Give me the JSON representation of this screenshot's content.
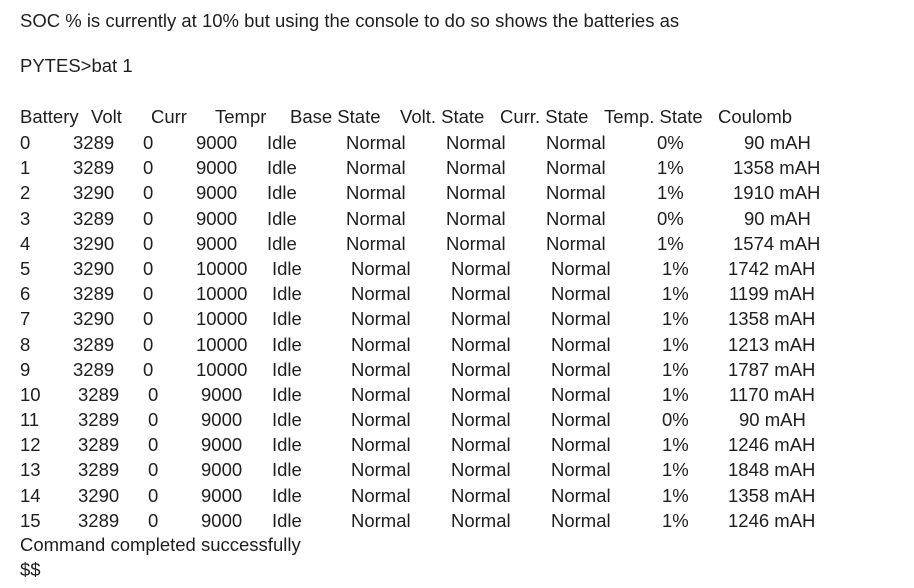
{
  "intro": "SOC % is currently at 10% but using the console to do so shows the batteries as",
  "prompt": "PYTES>bat 1",
  "columns": [
    "Battery",
    "Volt",
    "Curr",
    "Tempr",
    "Base State",
    "Volt. State",
    "Curr. State",
    "Temp. State",
    "Coulomb"
  ],
  "rows": [
    [
      "0",
      "3289",
      "0",
      "9000",
      "Idle",
      "Normal",
      "Normal",
      "Normal",
      "0%",
      "90 mAH"
    ],
    [
      "1",
      "3289",
      "0",
      "9000",
      "Idle",
      "Normal",
      "Normal",
      "Normal",
      "1%",
      "1358 mAH"
    ],
    [
      "2",
      "3290",
      "0",
      "9000",
      "Idle",
      "Normal",
      "Normal",
      "Normal",
      "1%",
      "1910 mAH"
    ],
    [
      "3",
      "3289",
      "0",
      "9000",
      "Idle",
      "Normal",
      "Normal",
      "Normal",
      "0%",
      "90 mAH"
    ],
    [
      "4",
      "3290",
      "0",
      "9000",
      "Idle",
      "Normal",
      "Normal",
      "Normal",
      "1%",
      "1574 mAH"
    ],
    [
      "5",
      "3290",
      "0",
      "10000",
      "Idle",
      "Normal",
      "Normal",
      "Normal",
      "1%",
      "1742 mAH"
    ],
    [
      "6",
      "3289",
      "0",
      "10000",
      "Idle",
      "Normal",
      "Normal",
      "Normal",
      "1%",
      "1199 mAH"
    ],
    [
      "7",
      "3290",
      "0",
      "10000",
      "Idle",
      "Normal",
      "Normal",
      "Normal",
      "1%",
      "1358 mAH"
    ],
    [
      "8",
      "3289",
      "0",
      "10000",
      "Idle",
      "Normal",
      "Normal",
      "Normal",
      "1%",
      "1213 mAH"
    ],
    [
      "9",
      "3289",
      "0",
      "10000",
      "Idle",
      "Normal",
      "Normal",
      "Normal",
      "1%",
      "1787 mAH"
    ],
    [
      "10",
      "3289",
      "0",
      "9000",
      "Idle",
      "Normal",
      "Normal",
      "Normal",
      "1%",
      "1170 mAH"
    ],
    [
      "11",
      "3289",
      "0",
      "9000",
      "Idle",
      "Normal",
      "Normal",
      "Normal",
      "0%",
      "90 mAH"
    ],
    [
      "12",
      "3289",
      "0",
      "9000",
      "Idle",
      "Normal",
      "Normal",
      "Normal",
      "1%",
      "1246 mAH"
    ],
    [
      "13",
      "3289",
      "0",
      "9000",
      "Idle",
      "Normal",
      "Normal",
      "Normal",
      "1%",
      "1848 mAH"
    ],
    [
      "14",
      "3290",
      "0",
      "9000",
      "Idle",
      "Normal",
      "Normal",
      "Normal",
      "1%",
      "1358 mAH"
    ],
    [
      "15",
      "3289",
      "0",
      "9000",
      "Idle",
      "Normal",
      "Normal",
      "Normal",
      "1%",
      "1246 mAH"
    ]
  ],
  "completed": "Command completed successfully",
  "shell_prompt": "$$"
}
